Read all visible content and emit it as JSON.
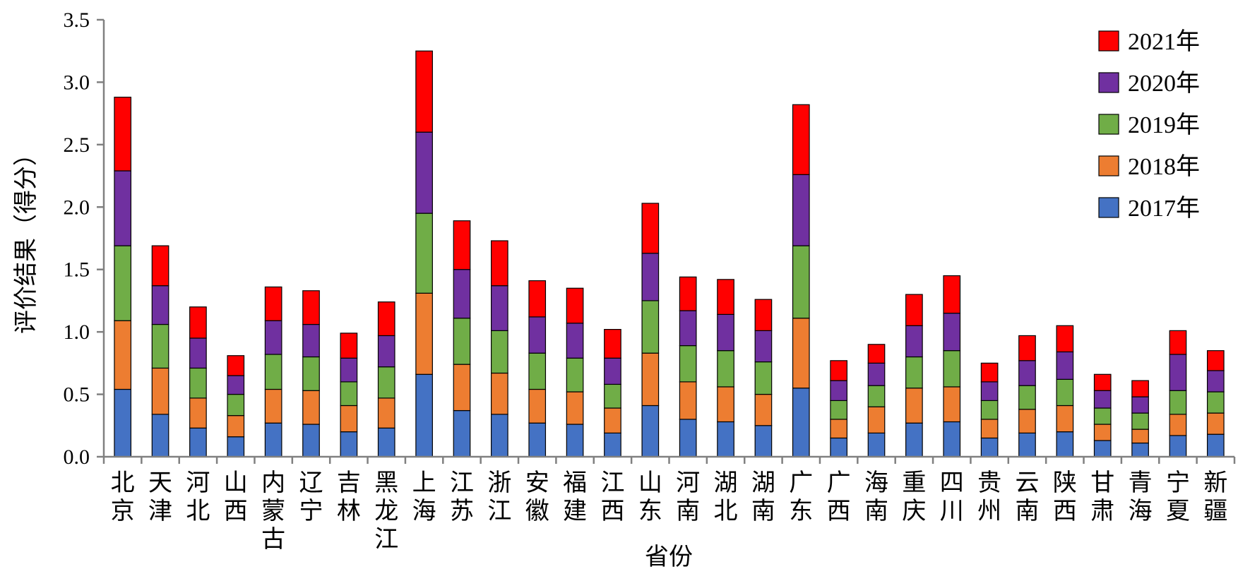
{
  "chart_data": {
    "type": "bar",
    "stacked": true,
    "title": "",
    "xlabel": "省份",
    "ylabel": "评价结果（得分）",
    "ylim": [
      0,
      3.5
    ],
    "yticks": [
      "0.0",
      "0.5",
      "1.0",
      "1.5",
      "2.0",
      "2.5",
      "3.0",
      "3.5"
    ],
    "grid": false,
    "legend_position": "top-right",
    "categories": [
      "北京",
      "天津",
      "河北",
      "山西",
      "内蒙古",
      "辽宁",
      "吉林",
      "黑龙江",
      "上海",
      "江苏",
      "浙江",
      "安徽",
      "福建",
      "江西",
      "山东",
      "河南",
      "湖北",
      "湖南",
      "广东",
      "广西",
      "海南",
      "重庆",
      "四川",
      "贵州",
      "云南",
      "陕西",
      "甘肃",
      "青海",
      "宁夏",
      "新疆"
    ],
    "series": [
      {
        "name": "2017年",
        "color": "#4472C4",
        "values": [
          0.54,
          0.34,
          0.23,
          0.16,
          0.27,
          0.26,
          0.2,
          0.23,
          0.66,
          0.37,
          0.34,
          0.27,
          0.26,
          0.19,
          0.41,
          0.3,
          0.28,
          0.25,
          0.55,
          0.15,
          0.19,
          0.27,
          0.28,
          0.15,
          0.19,
          0.2,
          0.13,
          0.11,
          0.17,
          0.18
        ]
      },
      {
        "name": "2018年",
        "color": "#ED7D31",
        "values": [
          0.55,
          0.37,
          0.24,
          0.17,
          0.27,
          0.27,
          0.21,
          0.24,
          0.65,
          0.37,
          0.33,
          0.27,
          0.26,
          0.2,
          0.42,
          0.3,
          0.28,
          0.25,
          0.56,
          0.15,
          0.21,
          0.28,
          0.28,
          0.15,
          0.19,
          0.21,
          0.13,
          0.11,
          0.17,
          0.17
        ]
      },
      {
        "name": "2019年",
        "color": "#70AD47",
        "values": [
          0.6,
          0.35,
          0.24,
          0.17,
          0.28,
          0.27,
          0.19,
          0.25,
          0.64,
          0.37,
          0.34,
          0.29,
          0.27,
          0.19,
          0.42,
          0.29,
          0.29,
          0.26,
          0.58,
          0.15,
          0.17,
          0.25,
          0.29,
          0.15,
          0.19,
          0.21,
          0.13,
          0.13,
          0.19,
          0.17
        ]
      },
      {
        "name": "2020年",
        "color": "#7030A0",
        "values": [
          0.6,
          0.31,
          0.24,
          0.15,
          0.27,
          0.26,
          0.19,
          0.25,
          0.65,
          0.39,
          0.36,
          0.29,
          0.28,
          0.21,
          0.38,
          0.28,
          0.29,
          0.25,
          0.57,
          0.16,
          0.18,
          0.25,
          0.3,
          0.15,
          0.2,
          0.22,
          0.14,
          0.13,
          0.29,
          0.17
        ]
      },
      {
        "name": "2021年",
        "color": "#FF0000",
        "values": [
          0.59,
          0.32,
          0.25,
          0.16,
          0.27,
          0.27,
          0.2,
          0.27,
          0.65,
          0.39,
          0.36,
          0.29,
          0.28,
          0.23,
          0.4,
          0.27,
          0.28,
          0.25,
          0.56,
          0.16,
          0.15,
          0.25,
          0.3,
          0.15,
          0.2,
          0.21,
          0.13,
          0.13,
          0.19,
          0.16
        ]
      }
    ]
  }
}
